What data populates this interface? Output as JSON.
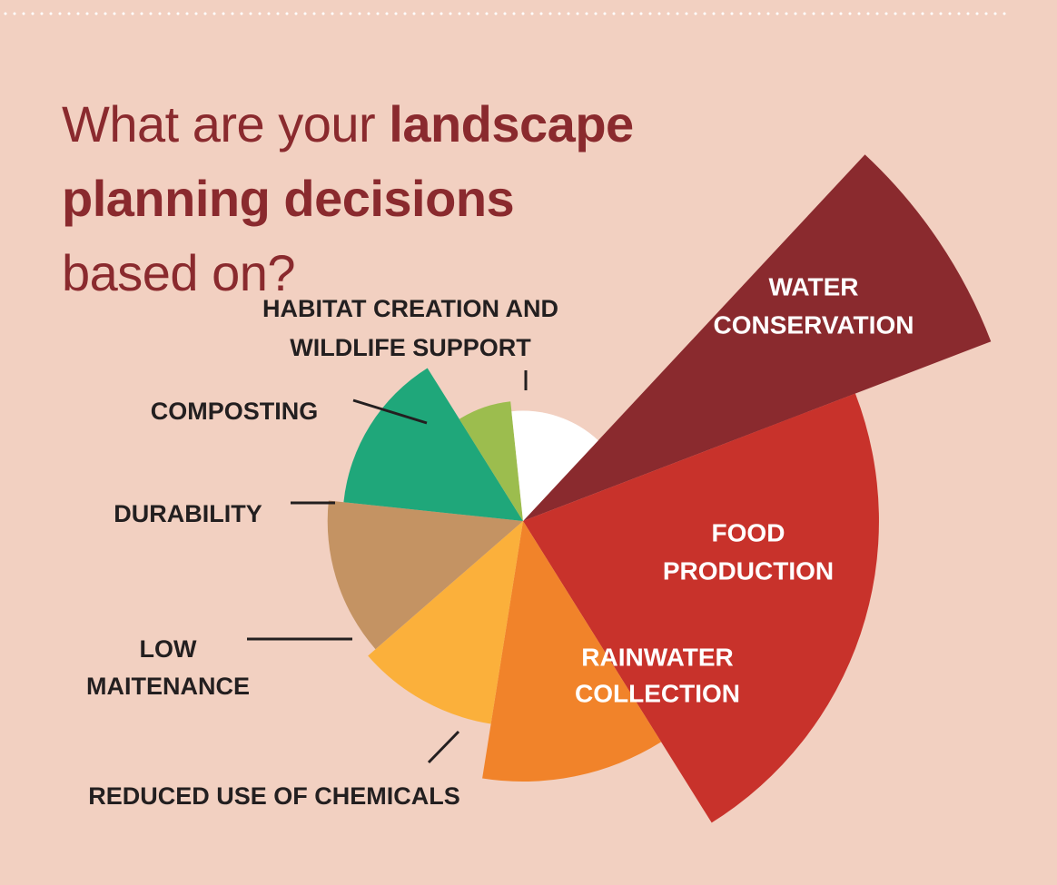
{
  "title": {
    "part1": "What are your ",
    "bold": "landscape planning decisions",
    "part2": " based on?"
  },
  "colors": {
    "background": "#f2d0c1",
    "title": "#8a2a2e",
    "label_dark": "#231f20",
    "label_light": "#ffffff"
  },
  "chart_data": {
    "type": "polar-area",
    "categories": [
      "WATER CONSERVATION",
      "FOOD PRODUCTION",
      "RAINWATER COLLECTION",
      "REDUCED USE OF CHEMICALS",
      "LOW MAITENANCE",
      "DURABILITY",
      "COMPOSTING",
      "HABITAT CREATION AND WILDLIFE SUPPORT"
    ],
    "relative_values": [
      1.0,
      0.71,
      0.52,
      0.41,
      0.39,
      0.36,
      0.24,
      0.22
    ],
    "colors": [
      "#8a2a2e",
      "#c8322b",
      "#f1832a",
      "#fbb03b",
      "#c49363",
      "#1fa77a",
      "#9cbd4e",
      "#ffffff"
    ],
    "labels": [
      {
        "lines": [
          "WATER",
          "CONSERVATION"
        ],
        "color": "#ffffff"
      },
      {
        "lines": [
          "FOOD",
          "PRODUCTION"
        ],
        "color": "#ffffff"
      },
      {
        "lines": [
          "RAINWATER",
          "COLLECTION"
        ],
        "color": "#ffffff"
      },
      {
        "lines": [
          "REDUCED USE OF CHEMICALS"
        ],
        "color": "#231f20"
      },
      {
        "lines": [
          "LOW",
          "MAITENANCE"
        ],
        "color": "#231f20"
      },
      {
        "lines": [
          "DURABILITY"
        ],
        "color": "#231f20"
      },
      {
        "lines": [
          "COMPOSTING"
        ],
        "color": "#231f20"
      },
      {
        "lines": [
          "HABITAT CREATION AND",
          "WILDLIFE SUPPORT"
        ],
        "color": "#231f20"
      }
    ]
  }
}
